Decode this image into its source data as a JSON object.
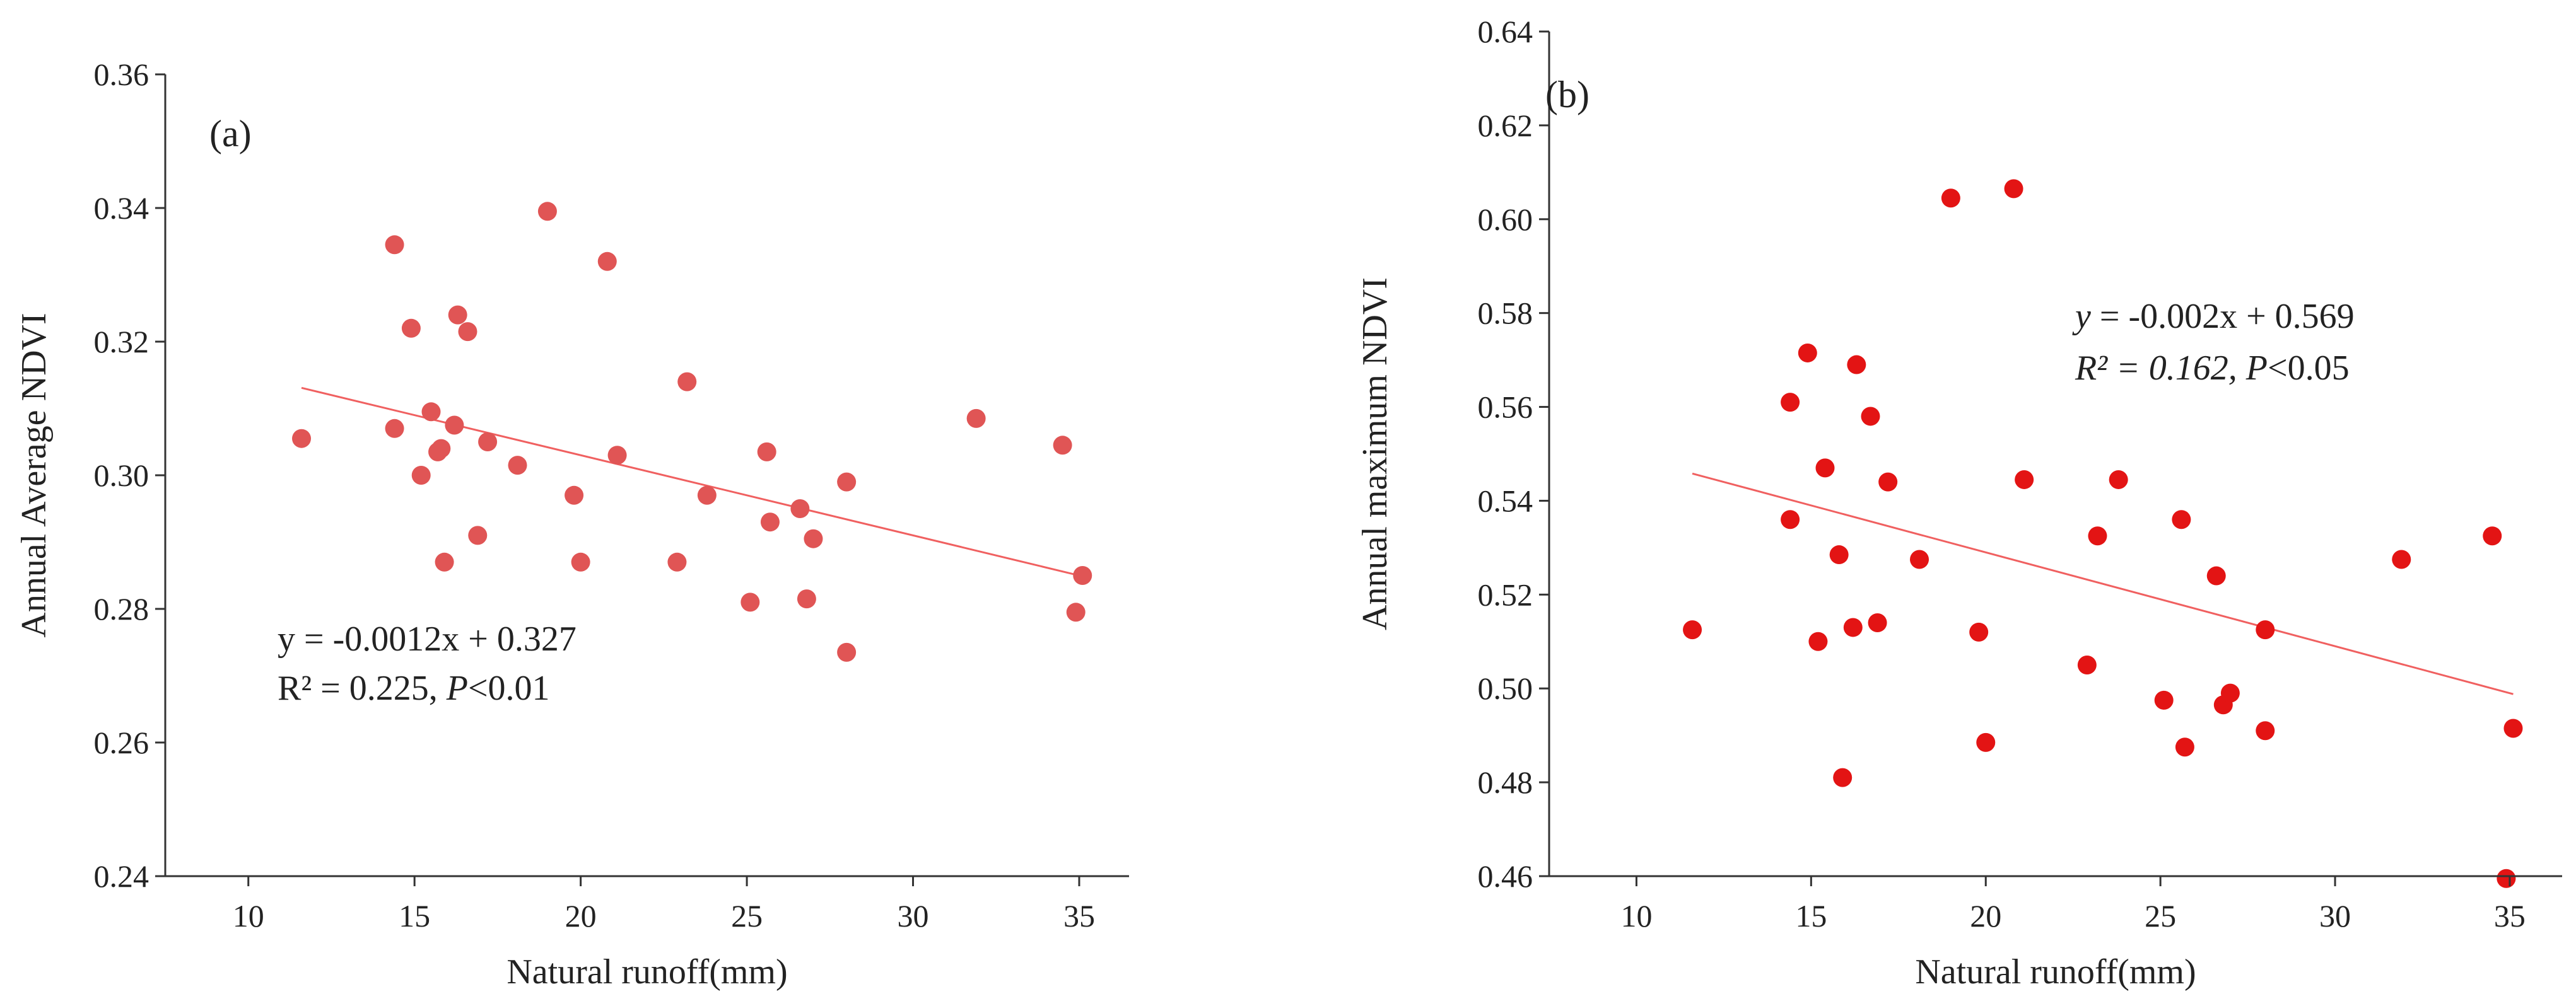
{
  "chart_data": [
    {
      "type": "scatter",
      "panel": "(a)",
      "xlabel": "Natural runoff(mm)",
      "ylabel": "Annual Average NDVI",
      "xlim": [
        7.5,
        36.5
      ],
      "ylim": [
        0.24,
        0.36
      ],
      "xticks": [
        10,
        15,
        20,
        25,
        30,
        35
      ],
      "yticks": [
        0.24,
        0.26,
        0.28,
        0.3,
        0.32,
        0.34,
        0.36
      ],
      "ytick_decimals": 2,
      "point_color": "#e05555",
      "line_color": "#f06060",
      "fit": {
        "slope": -0.0012,
        "intercept": 0.327,
        "x_range": [
          11.6,
          35.1
        ]
      },
      "equation": {
        "y": "y",
        "rest": " = -0.0012x + 0.327",
        "r2": "R² = 0.225, ",
        "p": "P",
        "p_rest": "<0.01"
      },
      "points": [
        [
          11.6,
          0.3055
        ],
        [
          14.4,
          0.3345
        ],
        [
          14.4,
          0.307
        ],
        [
          14.9,
          0.322
        ],
        [
          15.2,
          0.3
        ],
        [
          15.5,
          0.3095
        ],
        [
          15.7,
          0.3035
        ],
        [
          15.8,
          0.304
        ],
        [
          15.9,
          0.287
        ],
        [
          16.2,
          0.3075
        ],
        [
          16.3,
          0.324
        ],
        [
          16.6,
          0.3215
        ],
        [
          16.9,
          0.291
        ],
        [
          17.2,
          0.305
        ],
        [
          18.1,
          0.3015
        ],
        [
          19.0,
          0.3395
        ],
        [
          19.8,
          0.297
        ],
        [
          20.0,
          0.287
        ],
        [
          20.8,
          0.332
        ],
        [
          21.1,
          0.303
        ],
        [
          22.9,
          0.287
        ],
        [
          23.2,
          0.314
        ],
        [
          23.8,
          0.297
        ],
        [
          25.1,
          0.281
        ],
        [
          25.6,
          0.3035
        ],
        [
          25.7,
          0.293
        ],
        [
          26.6,
          0.295
        ],
        [
          26.8,
          0.2815
        ],
        [
          27.0,
          0.2905
        ],
        [
          28.0,
          0.299
        ],
        [
          28.0,
          0.2735
        ],
        [
          31.9,
          0.3085
        ],
        [
          34.5,
          0.3045
        ],
        [
          34.9,
          0.2795
        ],
        [
          35.1,
          0.285
        ]
      ]
    },
    {
      "type": "scatter",
      "panel": "(b)",
      "xlabel": "Natural runoff(mm)",
      "ylabel": "Annual maximum NDVI",
      "xlim": [
        7.5,
        36.5
      ],
      "ylim": [
        0.46,
        0.64
      ],
      "xticks": [
        10,
        15,
        20,
        25,
        30,
        35
      ],
      "yticks": [
        0.46,
        0.48,
        0.5,
        0.52,
        0.54,
        0.56,
        0.58,
        0.6,
        0.62,
        0.64
      ],
      "ytick_decimals": 2,
      "point_color": "#e31414",
      "line_color": "#f04040",
      "fit": {
        "slope": -0.002,
        "intercept": 0.569,
        "x_range": [
          11.6,
          35.1
        ]
      },
      "equation": {
        "y": "y",
        "rest": " = -0.002x + 0.569",
        "r2": "R² = 0.162, ",
        "p": "P",
        "p_rest": "<0.05"
      },
      "points": [
        [
          11.6,
          0.5125
        ],
        [
          14.4,
          0.561
        ],
        [
          14.4,
          0.536
        ],
        [
          14.9,
          0.5715
        ],
        [
          15.2,
          0.51
        ],
        [
          15.4,
          0.547
        ],
        [
          15.8,
          0.5285
        ],
        [
          15.9,
          0.481
        ],
        [
          16.2,
          0.513
        ],
        [
          16.3,
          0.569
        ],
        [
          16.7,
          0.558
        ],
        [
          16.9,
          0.514
        ],
        [
          17.2,
          0.544
        ],
        [
          18.1,
          0.5275
        ],
        [
          19.0,
          0.6045
        ],
        [
          19.8,
          0.512
        ],
        [
          20.0,
          0.4885
        ],
        [
          20.8,
          0.6065
        ],
        [
          21.1,
          0.5445
        ],
        [
          22.9,
          0.505
        ],
        [
          23.2,
          0.5325
        ],
        [
          23.8,
          0.5445
        ],
        [
          25.1,
          0.4975
        ],
        [
          25.6,
          0.536
        ],
        [
          25.7,
          0.4875
        ],
        [
          26.6,
          0.524
        ],
        [
          26.8,
          0.4965
        ],
        [
          27.0,
          0.499
        ],
        [
          28.0,
          0.5125
        ],
        [
          28.0,
          0.491
        ],
        [
          31.9,
          0.5275
        ],
        [
          34.5,
          0.5325
        ],
        [
          34.9,
          0.4595
        ],
        [
          35.1,
          0.4915
        ]
      ]
    }
  ]
}
